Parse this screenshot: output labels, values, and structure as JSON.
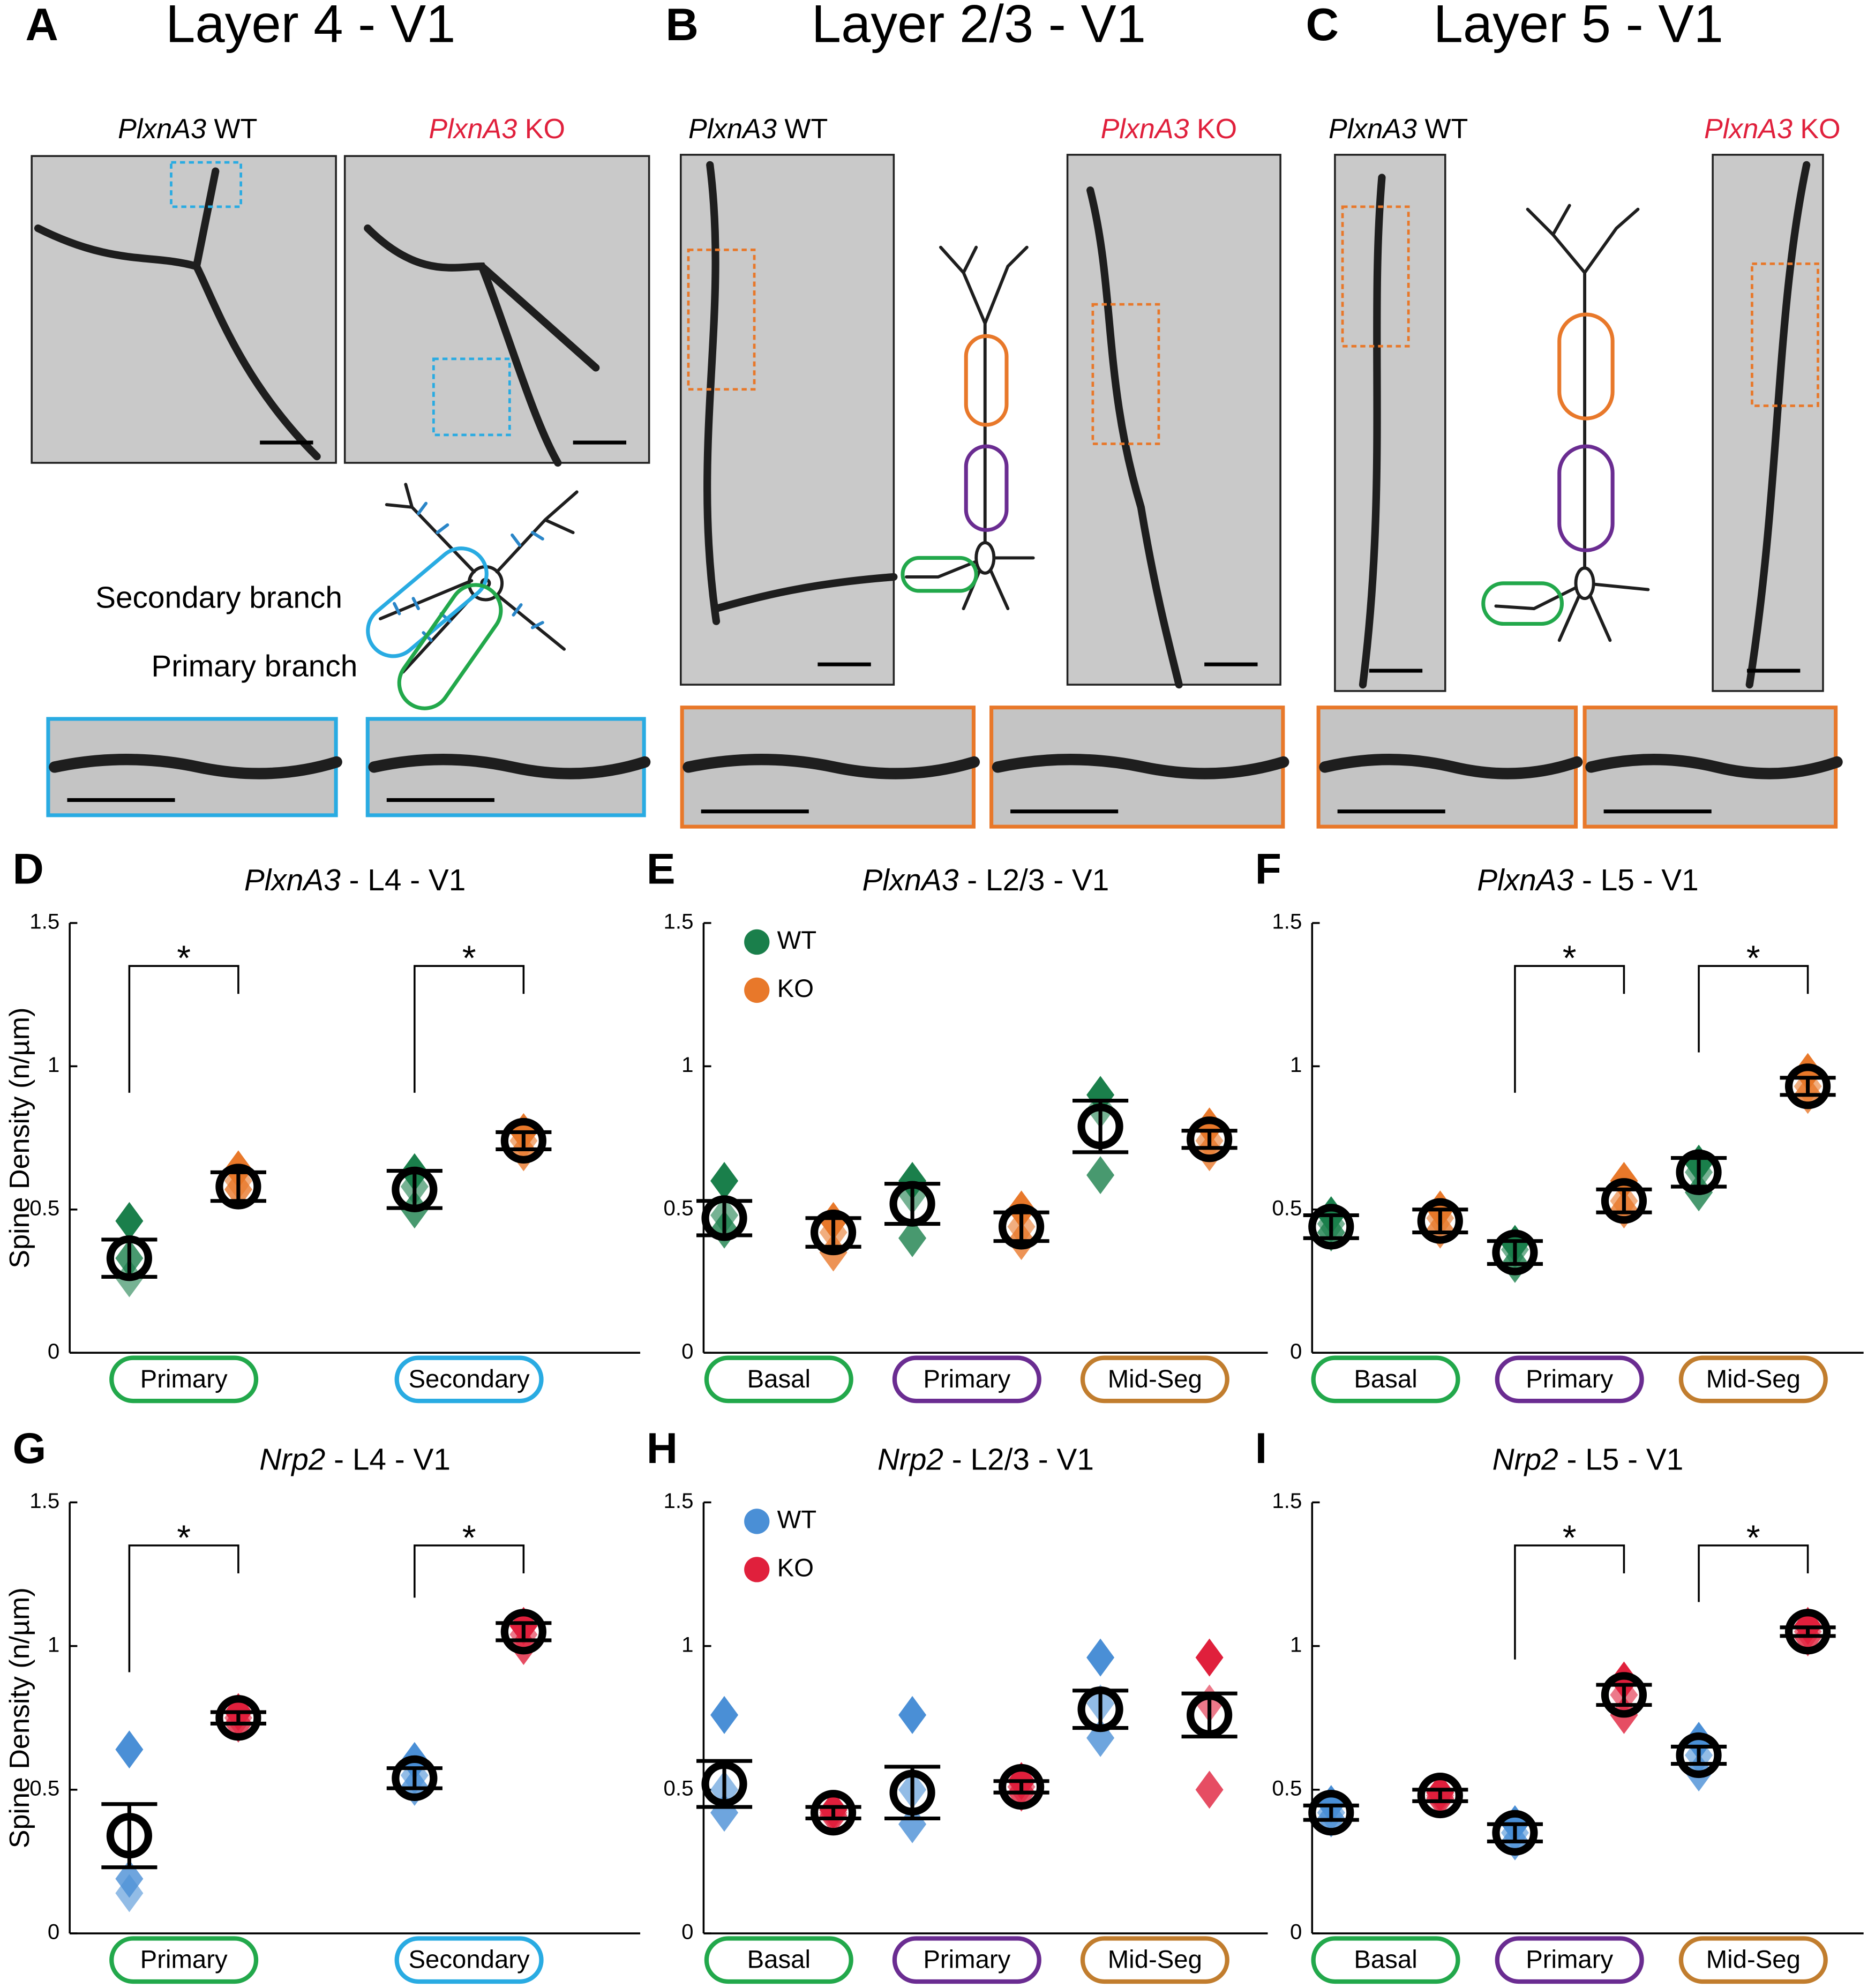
{
  "panels": [
    {
      "letter": "A",
      "title": "Layer 4 - V1",
      "wt_gene": "PlxnA3",
      "wt_label": "WT",
      "ko_gene": "PlxnA3",
      "ko_label": "KO"
    },
    {
      "letter": "B",
      "title": "Layer 2/3 - V1",
      "wt_gene": "PlxnA3",
      "wt_label": "WT",
      "ko_gene": "PlxnA3",
      "ko_label": "KO"
    },
    {
      "letter": "C",
      "title": "Layer 5 - V1",
      "wt_gene": "PlxnA3",
      "wt_label": "WT",
      "ko_gene": "PlxnA3",
      "ko_label": "KO"
    }
  ],
  "branch_labels": [
    "Secondary branch",
    "Primary branch"
  ],
  "chart_data": [
    {
      "panel": "D",
      "type": "dotplot",
      "gene": "PlxnA3",
      "title": "- L4 - V1",
      "ylabel": "Spine Density (n/µm)",
      "ylim": [
        0,
        1.5
      ],
      "yticks": [
        0,
        0.5,
        1,
        1.5
      ],
      "legend": false,
      "categories": [
        "Primary",
        "Secondary"
      ],
      "category_colors": [
        "#22a84b",
        "#29abe2"
      ],
      "series": [
        {
          "name": "WT",
          "color": "#1a7f4b",
          "values": [
            0.33,
            0.57
          ],
          "errors": [
            0.065,
            0.065
          ],
          "animals": [
            [
              0.46,
              0.33,
              0.26
            ],
            [
              0.63,
              0.5,
              0.58
            ]
          ]
        },
        {
          "name": "KO",
          "color": "#e8782a",
          "values": [
            0.58,
            0.74
          ],
          "errors": [
            0.05,
            0.03
          ],
          "animals": [
            [
              0.64,
              0.57,
              0.6
            ],
            [
              0.77,
              0.7,
              0.74
            ]
          ]
        }
      ],
      "significance": [
        "*",
        "*"
      ]
    },
    {
      "panel": "E",
      "type": "dotplot",
      "gene": "PlxnA3",
      "title": "- L2/3 - V1",
      "ylim": [
        0,
        1.5
      ],
      "yticks": [
        0,
        0.5,
        1,
        1.5
      ],
      "legend": true,
      "categories": [
        "Basal",
        "Primary",
        "Mid-Seg"
      ],
      "category_colors": [
        "#22a84b",
        "#6a2c91",
        "#c17d2e"
      ],
      "series": [
        {
          "name": "WT",
          "color": "#1a7f4b",
          "values": [
            0.47,
            0.52,
            0.79
          ],
          "errors": [
            0.06,
            0.07,
            0.09
          ],
          "animals": [
            [
              0.6,
              0.43,
              0.48
            ],
            [
              0.6,
              0.4,
              0.55
            ],
            [
              0.9,
              0.62,
              0.85
            ]
          ]
        },
        {
          "name": "KO",
          "color": "#e8782a",
          "values": [
            0.42,
            0.44,
            0.745
          ],
          "errors": [
            0.05,
            0.05,
            0.03
          ],
          "animals": [
            [
              0.46,
              0.35,
              0.42
            ],
            [
              0.5,
              0.39,
              0.44
            ],
            [
              0.79,
              0.7,
              0.74
            ]
          ]
        }
      ],
      "significance": [
        null,
        null,
        null
      ]
    },
    {
      "panel": "F",
      "type": "dotplot",
      "gene": "PlxnA3",
      "title": "- L5 - V1",
      "ylim": [
        0,
        1.5
      ],
      "yticks": [
        0,
        0.5,
        1,
        1.5
      ],
      "legend": false,
      "categories": [
        "Basal",
        "Primary",
        "Mid-Seg"
      ],
      "category_colors": [
        "#22a84b",
        "#6a2c91",
        "#c17d2e"
      ],
      "series": [
        {
          "name": "WT",
          "color": "#1a7f4b",
          "values": [
            0.44,
            0.35,
            0.63
          ],
          "errors": [
            0.04,
            0.04,
            0.05
          ],
          "animals": [
            [
              0.48,
              0.42,
              0.45
            ],
            [
              0.38,
              0.31,
              0.36
            ],
            [
              0.66,
              0.56,
              0.63
            ]
          ]
        },
        {
          "name": "KO",
          "color": "#e8782a",
          "values": [
            0.46,
            0.53,
            0.93
          ],
          "errors": [
            0.04,
            0.04,
            0.03
          ],
          "animals": [
            [
              0.5,
              0.43,
              0.47
            ],
            [
              0.6,
              0.5,
              0.53
            ],
            [
              0.98,
              0.9,
              0.93
            ]
          ]
        }
      ],
      "significance": [
        null,
        "*",
        "*"
      ]
    },
    {
      "panel": "G",
      "type": "dotplot",
      "gene": "Nrp2",
      "title": "- L4 - V1",
      "ylabel": "Spine Density (n/µm)",
      "ylim": [
        0,
        1.5
      ],
      "yticks": [
        0,
        0.5,
        1,
        1.5
      ],
      "legend": false,
      "categories": [
        "Primary",
        "Secondary"
      ],
      "category_colors": [
        "#22a84b",
        "#29abe2"
      ],
      "series": [
        {
          "name": "WT",
          "color": "#4a8fd6",
          "values": [
            0.34,
            0.54
          ],
          "errors": [
            0.11,
            0.035
          ],
          "animals": [
            [
              0.64,
              0.19,
              0.14
            ],
            [
              0.6,
              0.51,
              0.55
            ]
          ]
        },
        {
          "name": "KO",
          "color": "#e0203c",
          "values": [
            0.75,
            1.05
          ],
          "errors": [
            0.02,
            0.03
          ],
          "animals": [
            [
              0.77,
              0.73,
              0.75
            ],
            [
              1.07,
              1.0,
              1.04
            ]
          ]
        }
      ],
      "significance": [
        "*",
        "*"
      ]
    },
    {
      "panel": "H",
      "type": "dotplot",
      "gene": "Nrp2",
      "title": "- L2/3 - V1",
      "ylim": [
        0,
        1.5
      ],
      "yticks": [
        0,
        0.5,
        1,
        1.5
      ],
      "legend": true,
      "categories": [
        "Basal",
        "Primary",
        "Mid-Seg"
      ],
      "category_colors": [
        "#22a84b",
        "#6a2c91",
        "#c17d2e"
      ],
      "series": [
        {
          "name": "WT",
          "color": "#4a8fd6",
          "values": [
            0.52,
            0.49,
            0.78
          ],
          "errors": [
            0.08,
            0.09,
            0.065
          ],
          "animals": [
            [
              0.76,
              0.42,
              0.5
            ],
            [
              0.76,
              0.38,
              0.5
            ],
            [
              0.96,
              0.68,
              0.8
            ]
          ]
        },
        {
          "name": "KO",
          "color": "#e0203c",
          "values": [
            0.42,
            0.51,
            0.76
          ],
          "errors": [
            0.02,
            0.02,
            0.075
          ],
          "animals": [
            [
              0.43,
              0.41,
              0.42
            ],
            [
              0.53,
              0.49,
              0.51
            ],
            [
              0.96,
              0.5,
              0.8
            ]
          ]
        }
      ],
      "significance": [
        null,
        null,
        null
      ]
    },
    {
      "panel": "I",
      "type": "dotplot",
      "gene": "Nrp2",
      "title": "- L5 - V1",
      "ylim": [
        0,
        1.5
      ],
      "yticks": [
        0,
        0.5,
        1,
        1.5
      ],
      "legend": false,
      "categories": [
        "Basal",
        "Primary",
        "Mid-Seg"
      ],
      "category_colors": [
        "#22a84b",
        "#6a2c91",
        "#c17d2e"
      ],
      "series": [
        {
          "name": "WT",
          "color": "#4a8fd6",
          "values": [
            0.42,
            0.35,
            0.62
          ],
          "errors": [
            0.025,
            0.03,
            0.03
          ],
          "animals": [
            [
              0.45,
              0.4,
              0.42
            ],
            [
              0.38,
              0.32,
              0.35
            ],
            [
              0.67,
              0.56,
              0.62
            ]
          ]
        },
        {
          "name": "KO",
          "color": "#e0203c",
          "values": [
            0.48,
            0.83,
            1.05
          ],
          "errors": [
            0.02,
            0.035,
            0.015
          ],
          "animals": [
            [
              0.49,
              0.47,
              0.48
            ],
            [
              0.88,
              0.76,
              0.83
            ],
            [
              1.07,
              1.03,
              1.05
            ]
          ]
        }
      ],
      "significance": [
        null,
        "*",
        "*"
      ]
    }
  ]
}
